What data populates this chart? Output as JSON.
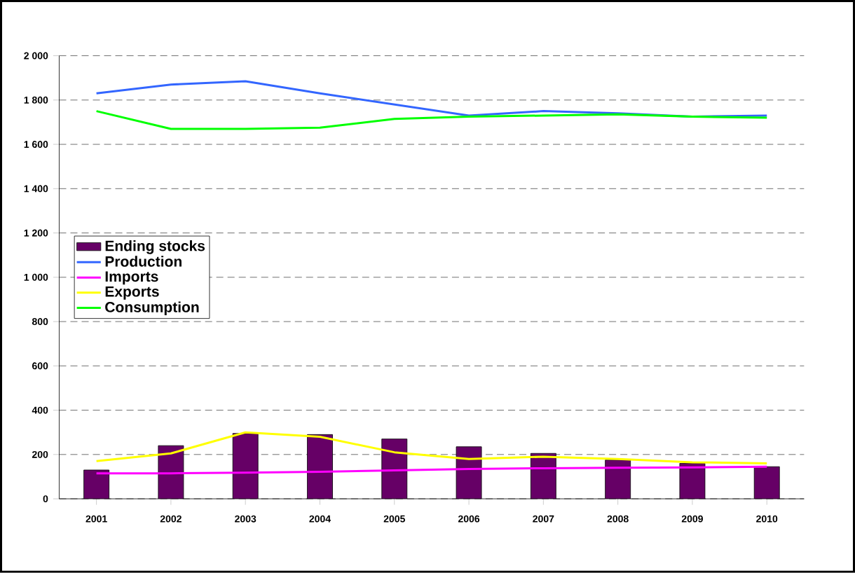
{
  "chart_data": {
    "type": "bar",
    "categories": [
      "2001",
      "2002",
      "2003",
      "2004",
      "2005",
      "2006",
      "2007",
      "2008",
      "2009",
      "2010"
    ],
    "series": [
      {
        "name": "Ending stocks",
        "color": "#660066",
        "values": [
          130,
          240,
          295,
          290,
          270,
          235,
          205,
          175,
          160,
          145
        ]
      },
      {
        "name": "Production",
        "type": "line",
        "color": "#3366ff",
        "values": [
          1830,
          1870,
          1885,
          1830,
          1780,
          1730,
          1750,
          1740,
          1725,
          1730
        ]
      },
      {
        "name": "Imports",
        "type": "line",
        "color": "#ff00ff",
        "values": [
          115,
          115,
          118,
          122,
          128,
          135,
          138,
          140,
          142,
          145
        ]
      },
      {
        "name": "Exports",
        "type": "line",
        "color": "#ffff00",
        "values": [
          170,
          205,
          300,
          280,
          210,
          180,
          190,
          180,
          165,
          160
        ]
      },
      {
        "name": "Consumption",
        "type": "line",
        "color": "#00ff00",
        "values": [
          1750,
          1670,
          1670,
          1675,
          1715,
          1725,
          1730,
          1735,
          1725,
          1720
        ]
      }
    ],
    "ylim": [
      0,
      2000
    ],
    "yticks": [
      0,
      200,
      400,
      600,
      800,
      {
        "value": 1000,
        "label": "1 000"
      },
      {
        "value": 1200,
        "label": "1 200"
      },
      {
        "value": 1400,
        "label": "1 400"
      },
      {
        "value": 1600,
        "label": "1 600"
      },
      {
        "value": 1800,
        "label": "1 800"
      },
      {
        "value": 2000,
        "label": "2 000"
      }
    ],
    "grid": "y",
    "legend": "left",
    "marker": "none"
  }
}
